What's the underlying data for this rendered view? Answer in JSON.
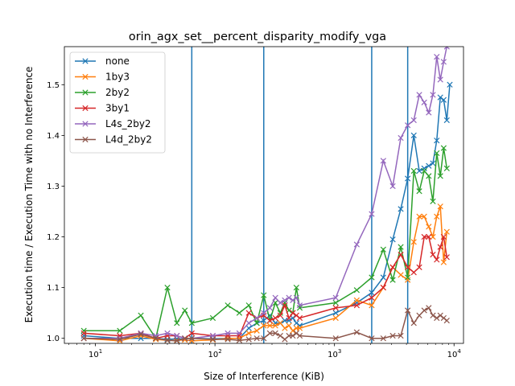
{
  "chart_data": {
    "type": "line",
    "title": "orin_agx_set__percent_disparity_modify_vga",
    "xlabel": "Size of Interference (KiB)",
    "ylabel": "Execution time / Execution Time with no Interference",
    "xscale": "log",
    "xlim": [
      5.5,
      12000
    ],
    "ylim": [
      0.99,
      1.575
    ],
    "xticks": [
      {
        "value": 10,
        "base": "10",
        "exp": "1"
      },
      {
        "value": 100,
        "base": "10",
        "exp": "2"
      },
      {
        "value": 1000,
        "base": "10",
        "exp": "3"
      },
      {
        "value": 10000,
        "base": "10",
        "exp": "4"
      }
    ],
    "yticks": [
      "1.0",
      "1.1",
      "1.2",
      "1.3",
      "1.4",
      "1.5"
    ],
    "vlines": [
      64,
      256,
      2048,
      4096
    ],
    "vline_color": "#1f77b4",
    "legend_position": "upper-left",
    "grid": false,
    "series": [
      {
        "name": "none",
        "color": "#1f77b4",
        "points": [
          [
            8,
            1.005
          ],
          [
            16,
            1.0
          ],
          [
            24,
            1.0
          ],
          [
            32,
            1.0
          ],
          [
            40,
            0.998
          ],
          [
            48,
            0.999
          ],
          [
            56,
            0.999
          ],
          [
            64,
            1.0
          ],
          [
            96,
            0.999
          ],
          [
            128,
            1.0
          ],
          [
            160,
            1.0
          ],
          [
            192,
            1.02
          ],
          [
            224,
            1.03
          ],
          [
            256,
            1.035
          ],
          [
            288,
            1.045
          ],
          [
            320,
            1.03
          ],
          [
            352,
            1.03
          ],
          [
            384,
            1.035
          ],
          [
            416,
            1.035
          ],
          [
            448,
            1.04
          ],
          [
            480,
            1.03
          ],
          [
            512,
            1.025
          ],
          [
            1024,
            1.05
          ],
          [
            1536,
            1.07
          ],
          [
            2048,
            1.09
          ],
          [
            2560,
            1.12
          ],
          [
            3072,
            1.195
          ],
          [
            3584,
            1.255
          ],
          [
            4096,
            1.315
          ],
          [
            4608,
            1.4
          ],
          [
            5120,
            1.33
          ],
          [
            5632,
            1.335
          ],
          [
            6144,
            1.34
          ],
          [
            6656,
            1.345
          ],
          [
            7168,
            1.39
          ],
          [
            7680,
            1.475
          ],
          [
            8192,
            1.47
          ],
          [
            8704,
            1.43
          ],
          [
            9216,
            1.5
          ]
        ]
      },
      {
        "name": "1by3",
        "color": "#ff7f0e",
        "points": [
          [
            8,
            1.0
          ],
          [
            16,
            0.995
          ],
          [
            24,
            1.005
          ],
          [
            32,
            0.998
          ],
          [
            40,
            0.996
          ],
          [
            48,
            0.996
          ],
          [
            56,
            0.997
          ],
          [
            64,
            0.995
          ],
          [
            96,
            0.997
          ],
          [
            128,
            1.0
          ],
          [
            160,
            1.0
          ],
          [
            192,
            1.01
          ],
          [
            224,
            1.015
          ],
          [
            256,
            1.025
          ],
          [
            288,
            1.025
          ],
          [
            320,
            1.025
          ],
          [
            352,
            1.03
          ],
          [
            384,
            1.02
          ],
          [
            416,
            1.025
          ],
          [
            448,
            1.015
          ],
          [
            480,
            1.02
          ],
          [
            512,
            1.02
          ],
          [
            1024,
            1.04
          ],
          [
            1536,
            1.075
          ],
          [
            2048,
            1.065
          ],
          [
            2560,
            1.1
          ],
          [
            3072,
            1.14
          ],
          [
            3584,
            1.125
          ],
          [
            4096,
            1.115
          ],
          [
            4608,
            1.19
          ],
          [
            5120,
            1.24
          ],
          [
            5632,
            1.24
          ],
          [
            6144,
            1.22
          ],
          [
            6656,
            1.2
          ],
          [
            7168,
            1.24
          ],
          [
            7680,
            1.26
          ],
          [
            8192,
            1.15
          ],
          [
            8704,
            1.21
          ]
        ]
      },
      {
        "name": "2by2",
        "color": "#2ca02c",
        "points": [
          [
            8,
            1.015
          ],
          [
            16,
            1.015
          ],
          [
            24,
            1.045
          ],
          [
            32,
            1.0
          ],
          [
            40,
            1.1
          ],
          [
            48,
            1.03
          ],
          [
            56,
            1.055
          ],
          [
            64,
            1.03
          ],
          [
            96,
            1.04
          ],
          [
            128,
            1.065
          ],
          [
            160,
            1.05
          ],
          [
            192,
            1.065
          ],
          [
            224,
            1.03
          ],
          [
            256,
            1.085
          ],
          [
            288,
            1.035
          ],
          [
            320,
            1.07
          ],
          [
            352,
            1.05
          ],
          [
            384,
            1.07
          ],
          [
            416,
            1.055
          ],
          [
            448,
            1.05
          ],
          [
            480,
            1.1
          ],
          [
            512,
            1.06
          ],
          [
            1024,
            1.07
          ],
          [
            1536,
            1.095
          ],
          [
            2048,
            1.12
          ],
          [
            2560,
            1.175
          ],
          [
            3072,
            1.115
          ],
          [
            3584,
            1.18
          ],
          [
            4096,
            1.12
          ],
          [
            4608,
            1.33
          ],
          [
            5120,
            1.29
          ],
          [
            5632,
            1.33
          ],
          [
            6144,
            1.32
          ],
          [
            6656,
            1.27
          ],
          [
            7168,
            1.365
          ],
          [
            7680,
            1.32
          ],
          [
            8192,
            1.375
          ],
          [
            8704,
            1.335
          ]
        ]
      },
      {
        "name": "3by1",
        "color": "#d62728",
        "points": [
          [
            8,
            1.01
          ],
          [
            16,
            1.005
          ],
          [
            24,
            1.01
          ],
          [
            32,
            1.0
          ],
          [
            40,
            1.005
          ],
          [
            48,
            1.005
          ],
          [
            56,
            1.0
          ],
          [
            64,
            1.01
          ],
          [
            96,
            1.005
          ],
          [
            128,
            1.005
          ],
          [
            160,
            1.005
          ],
          [
            192,
            1.05
          ],
          [
            224,
            1.04
          ],
          [
            256,
            1.045
          ],
          [
            288,
            1.035
          ],
          [
            320,
            1.04
          ],
          [
            352,
            1.045
          ],
          [
            384,
            1.065
          ],
          [
            416,
            1.04
          ],
          [
            448,
            1.05
          ],
          [
            480,
            1.045
          ],
          [
            512,
            1.04
          ],
          [
            1024,
            1.06
          ],
          [
            1536,
            1.065
          ],
          [
            2048,
            1.08
          ],
          [
            2560,
            1.1
          ],
          [
            3072,
            1.14
          ],
          [
            3584,
            1.165
          ],
          [
            4096,
            1.14
          ],
          [
            4608,
            1.13
          ],
          [
            5120,
            1.14
          ],
          [
            5632,
            1.2
          ],
          [
            6144,
            1.2
          ],
          [
            6656,
            1.165
          ],
          [
            7168,
            1.155
          ],
          [
            7680,
            1.18
          ],
          [
            8192,
            1.2
          ],
          [
            8704,
            1.16
          ]
        ]
      },
      {
        "name": "L4s_2by2",
        "color": "#9467bd",
        "points": [
          [
            8,
            1.0
          ],
          [
            16,
            1.0
          ],
          [
            24,
            1.01
          ],
          [
            32,
            1.005
          ],
          [
            40,
            1.01
          ],
          [
            48,
            1.005
          ],
          [
            56,
            1.0
          ],
          [
            64,
            1.0
          ],
          [
            96,
            1.005
          ],
          [
            128,
            1.01
          ],
          [
            160,
            1.01
          ],
          [
            192,
            1.03
          ],
          [
            224,
            1.04
          ],
          [
            256,
            1.05
          ],
          [
            288,
            1.06
          ],
          [
            320,
            1.08
          ],
          [
            352,
            1.07
          ],
          [
            384,
            1.075
          ],
          [
            416,
            1.08
          ],
          [
            448,
            1.075
          ],
          [
            480,
            1.08
          ],
          [
            512,
            1.065
          ],
          [
            1024,
            1.08
          ],
          [
            1536,
            1.185
          ],
          [
            2048,
            1.245
          ],
          [
            2560,
            1.35
          ],
          [
            3072,
            1.3
          ],
          [
            3584,
            1.395
          ],
          [
            4096,
            1.42
          ],
          [
            4608,
            1.43
          ],
          [
            5120,
            1.48
          ],
          [
            5632,
            1.465
          ],
          [
            6144,
            1.445
          ],
          [
            6656,
            1.48
          ],
          [
            7168,
            1.555
          ],
          [
            7680,
            1.51
          ],
          [
            8192,
            1.545
          ],
          [
            8704,
            1.575
          ]
        ]
      },
      {
        "name": "L4d_2by2",
        "color": "#8c564b",
        "points": [
          [
            8,
            1.0
          ],
          [
            16,
            0.998
          ],
          [
            24,
            1.008
          ],
          [
            32,
            1.0
          ],
          [
            40,
            0.996
          ],
          [
            48,
            0.995
          ],
          [
            56,
            1.0
          ],
          [
            64,
            1.0
          ],
          [
            96,
            0.998
          ],
          [
            128,
            0.998
          ],
          [
            160,
            0.996
          ],
          [
            192,
            0.998
          ],
          [
            224,
            1.0
          ],
          [
            256,
            1.0
          ],
          [
            288,
            1.01
          ],
          [
            320,
            1.01
          ],
          [
            352,
            1.005
          ],
          [
            384,
            0.998
          ],
          [
            416,
            1.005
          ],
          [
            448,
            1.005
          ],
          [
            480,
            1.01
          ],
          [
            512,
            1.005
          ],
          [
            1024,
            1.0
          ],
          [
            1536,
            1.012
          ],
          [
            2048,
            1.0
          ],
          [
            2560,
            1.0
          ],
          [
            3072,
            1.005
          ],
          [
            3584,
            1.005
          ],
          [
            4096,
            1.055
          ],
          [
            4608,
            1.03
          ],
          [
            5120,
            1.045
          ],
          [
            5632,
            1.055
          ],
          [
            6144,
            1.06
          ],
          [
            6656,
            1.045
          ],
          [
            7168,
            1.04
          ],
          [
            7680,
            1.045
          ],
          [
            8192,
            1.04
          ],
          [
            8704,
            1.035
          ]
        ]
      }
    ]
  }
}
